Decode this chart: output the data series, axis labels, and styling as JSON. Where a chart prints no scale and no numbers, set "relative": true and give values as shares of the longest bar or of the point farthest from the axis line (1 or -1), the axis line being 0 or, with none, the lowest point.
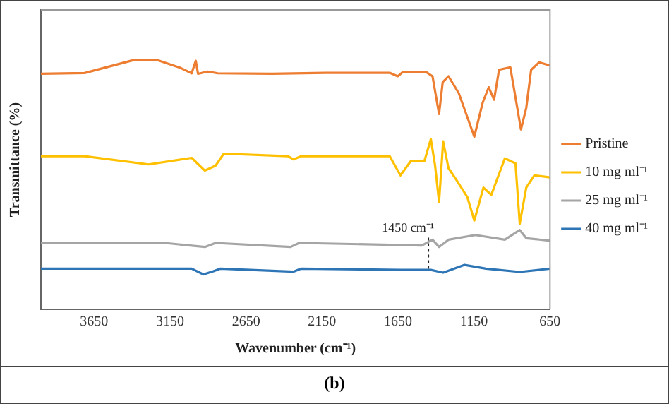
{
  "chart_data": {
    "type": "line",
    "relative": true,
    "xlabel": "Wavenumber (cm⁻¹)",
    "ylabel": "Transmittance (%)",
    "xlim": [
      4000,
      650
    ],
    "xticks": [
      3650,
      3150,
      2650,
      2150,
      1650,
      1150,
      650
    ],
    "legend": "right",
    "grid": false,
    "marker": "none",
    "line_style": "solid",
    "annotations": [
      {
        "text": "1450 cm⁻¹",
        "x": 1450,
        "y": 0.163
      },
      "(b)"
    ],
    "series": [
      {
        "name": "Pristine",
        "color": "#ed7d31",
        "x": [
          4000,
          3713,
          3396,
          3238,
          3079,
          3008,
          2981,
          2966,
          2903,
          2836,
          2480,
          2128,
          1705,
          1652,
          1620,
          1462,
          1423,
          1380,
          1356,
          1318,
          1250,
          1148,
          1092,
          1053,
          1018,
          985,
          911,
          841,
          806,
          774,
          721,
          650
        ],
        "values": [
          0.944,
          0.947,
          0.998,
          1,
          0.967,
          0.946,
          0.996,
          0.944,
          0.953,
          0.946,
          0.944,
          0.948,
          0.948,
          0.934,
          0.95,
          0.95,
          0.934,
          0.783,
          0.91,
          0.934,
          0.866,
          0.692,
          0.83,
          0.89,
          0.84,
          0.96,
          0.97,
          0.721,
          0.808,
          0.96,
          0.99,
          0.977
        ]
      },
      {
        "name": "10 mg ml⁻¹",
        "color": "#ffc000",
        "x": [
          4000,
          3713,
          3291,
          3008,
          2921,
          2850,
          2797,
          2374,
          2339,
          2286,
          1705,
          1634,
          1565,
          1476,
          1434,
          1406,
          1380,
          1353,
          1318,
          1264,
          1194,
          1148,
          1088,
          1036,
          947,
          877,
          849,
          806,
          753,
          650
        ],
        "values": [
          0.614,
          0.614,
          0.581,
          0.607,
          0.556,
          0.576,
          0.624,
          0.614,
          0.601,
          0.614,
          0.614,
          0.537,
          0.595,
          0.595,
          0.682,
          0.576,
          0.43,
          0.673,
          0.566,
          0.517,
          0.45,
          0.356,
          0.488,
          0.459,
          0.605,
          0.585,
          0.343,
          0.488,
          0.537,
          0.529
        ]
      },
      {
        "name": "25 mg ml⁻¹",
        "color": "#a5a5a5",
        "x": [
          4000,
          3185,
          2921,
          2850,
          2357,
          2300,
          1494,
          1423,
          1380,
          1318,
          1141,
          947,
          849,
          806,
          650
        ],
        "values": [
          0.266,
          0.266,
          0.25,
          0.266,
          0.25,
          0.266,
          0.256,
          0.279,
          0.25,
          0.279,
          0.298,
          0.279,
          0.318,
          0.285,
          0.275
        ]
      },
      {
        "name": "40 mg ml⁻¹",
        "color": "#2e75b6",
        "x": [
          4000,
          3008,
          2931,
          2868,
          2820,
          2339,
          2290,
          1634,
          1434,
          1353,
          1212,
          1071,
          849,
          650
        ],
        "values": [
          0.163,
          0.163,
          0.14,
          0.152,
          0.163,
          0.151,
          0.163,
          0.158,
          0.158,
          0.147,
          0.178,
          0.163,
          0.15,
          0.163
        ]
      }
    ]
  }
}
